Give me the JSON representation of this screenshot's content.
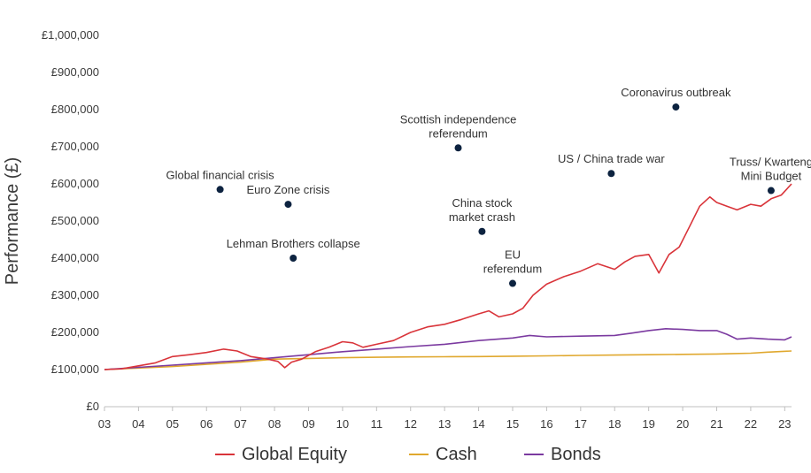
{
  "chart_data": {
    "type": "line",
    "ylabel": "Performance (£)",
    "xlabel": "",
    "xlim": [
      3,
      23.2
    ],
    "ylim": [
      0,
      1000000
    ],
    "grid": false,
    "legend_placement": "bottom",
    "x_ticks": [
      3,
      4,
      5,
      6,
      7,
      8,
      9,
      10,
      11,
      12,
      13,
      14,
      15,
      16,
      17,
      18,
      19,
      20,
      21,
      22,
      23
    ],
    "x_tick_labels": [
      "03",
      "04",
      "05",
      "06",
      "07",
      "08",
      "09",
      "10",
      "11",
      "12",
      "13",
      "14",
      "15",
      "16",
      "17",
      "18",
      "19",
      "20",
      "21",
      "22",
      "23"
    ],
    "y_ticks": [
      0,
      100000,
      200000,
      300000,
      400000,
      500000,
      600000,
      700000,
      800000,
      900000,
      1000000
    ],
    "y_tick_labels": [
      "£0",
      "£100,000",
      "£200,000",
      "£300,000",
      "£400,000",
      "£500,000",
      "£600,000",
      "£700,000",
      "£800,000",
      "£900,000",
      "£1,000,000"
    ],
    "series": [
      {
        "name": "Global Equity",
        "color": "#d9343a",
        "x": [
          3,
          3.5,
          4,
          4.5,
          5,
          5.5,
          6,
          6.5,
          6.9,
          7.3,
          7.8,
          8.1,
          8.3,
          8.5,
          8.8,
          9.2,
          9.6,
          10,
          10.3,
          10.6,
          11,
          11.5,
          12,
          12.5,
          13,
          13.5,
          14,
          14.3,
          14.6,
          15,
          15.3,
          15.6,
          16,
          16.5,
          17,
          17.5,
          18,
          18.3,
          18.6,
          19,
          19.3,
          19.6,
          19.9,
          20.2,
          20.5,
          20.8,
          21,
          21.3,
          21.6,
          22,
          22.3,
          22.6,
          22.9,
          23.2
        ],
        "y": [
          100000,
          102000,
          110000,
          118000,
          135000,
          140000,
          146000,
          155000,
          150000,
          135000,
          128000,
          122000,
          105000,
          120000,
          128000,
          148000,
          160000,
          175000,
          172000,
          160000,
          168000,
          178000,
          200000,
          215000,
          222000,
          235000,
          250000,
          258000,
          242000,
          250000,
          265000,
          300000,
          330000,
          350000,
          365000,
          385000,
          370000,
          390000,
          405000,
          410000,
          360000,
          410000,
          430000,
          485000,
          540000,
          565000,
          550000,
          540000,
          530000,
          545000,
          540000,
          560000,
          570000,
          600000
        ]
      },
      {
        "name": "Cash",
        "color": "#e0a82e",
        "x": [
          3,
          4,
          5,
          6,
          7,
          8,
          9,
          10,
          11,
          12,
          13,
          14,
          15,
          16,
          17,
          18,
          19,
          20,
          21,
          21.5,
          22,
          22.5,
          23.2
        ],
        "y": [
          100000,
          104000,
          108000,
          114000,
          120000,
          128000,
          130000,
          132000,
          133000,
          134000,
          134500,
          135000,
          136000,
          137000,
          138000,
          139000,
          140000,
          141000,
          142000,
          143000,
          144000,
          147000,
          150000
        ]
      },
      {
        "name": "Bonds",
        "color": "#7b3aa0",
        "x": [
          3,
          4,
          5,
          6,
          7,
          8,
          9,
          10,
          11,
          12,
          13,
          14,
          15,
          15.5,
          16,
          17,
          18,
          18.5,
          19,
          19.5,
          20,
          20.5,
          21,
          21.3,
          21.6,
          22,
          22.5,
          23,
          23.2
        ],
        "y": [
          100000,
          106000,
          112000,
          118000,
          124000,
          132000,
          140000,
          148000,
          155000,
          162000,
          168000,
          178000,
          185000,
          192000,
          188000,
          190000,
          192000,
          198000,
          205000,
          210000,
          208000,
          205000,
          205000,
          195000,
          182000,
          185000,
          182000,
          180000,
          188000
        ]
      }
    ],
    "annotations": [
      {
        "lines": [
          "Global financial crisis"
        ],
        "x": 6.4,
        "y": 585000
      },
      {
        "lines": [
          "Euro Zone crisis"
        ],
        "x": 8.4,
        "y": 545000
      },
      {
        "lines": [
          "Lehman Brothers collapse"
        ],
        "x": 8.55,
        "y": 400000
      },
      {
        "lines": [
          "Scottish  independence",
          "referendum"
        ],
        "x": 13.4,
        "y": 697000
      },
      {
        "lines": [
          "China stock",
          "market crash"
        ],
        "x": 14.1,
        "y": 472000
      },
      {
        "lines": [
          "EU",
          "referendum"
        ],
        "x": 15.0,
        "y": 332000
      },
      {
        "lines": [
          "US / China trade war"
        ],
        "x": 17.9,
        "y": 628000
      },
      {
        "lines": [
          "Coronavirus outbreak"
        ],
        "x": 19.8,
        "y": 807000
      },
      {
        "lines": [
          "Truss/ Kwarteng",
          "Mini Budget"
        ],
        "x": 22.6,
        "y": 582000
      }
    ],
    "annotation_dot_color": "#0d2340"
  }
}
